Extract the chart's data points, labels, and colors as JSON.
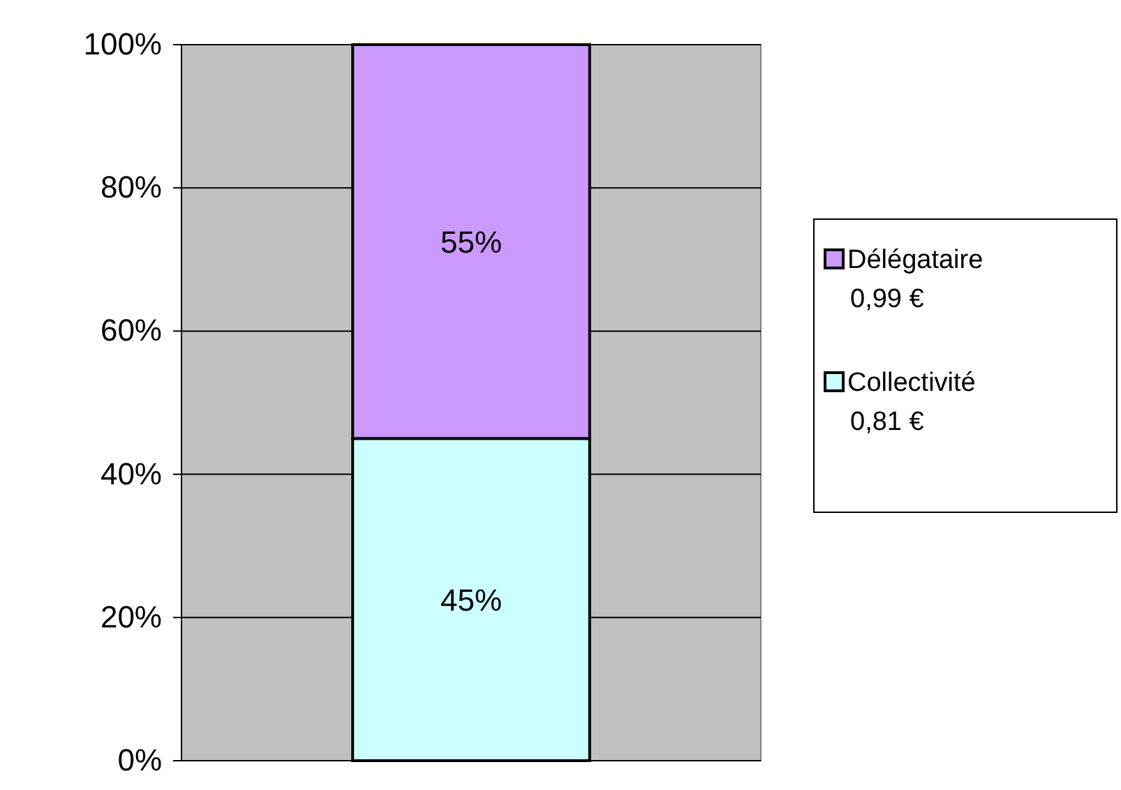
{
  "chart_data": {
    "type": "bar",
    "stacked": true,
    "categories": [
      null
    ],
    "series": [
      {
        "name": "Collectivité\n0,81 €",
        "color": "#ccffff",
        "values": [
          45
        ],
        "value_labels": [
          "45%"
        ]
      },
      {
        "name": "Délégataire\n0,99 €",
        "color": "#cc99ff",
        "values": [
          55
        ],
        "value_labels": [
          "55%"
        ]
      }
    ],
    "ylim": [
      0,
      100
    ],
    "yticks": [
      {
        "value": 0,
        "label": "0%"
      },
      {
        "value": 20,
        "label": "20%"
      },
      {
        "value": 40,
        "label": "40%"
      },
      {
        "value": 60,
        "label": "60%"
      },
      {
        "value": 80,
        "label": "80%"
      },
      {
        "value": 100,
        "label": "100%"
      }
    ],
    "grid": "y",
    "legend": "right"
  }
}
